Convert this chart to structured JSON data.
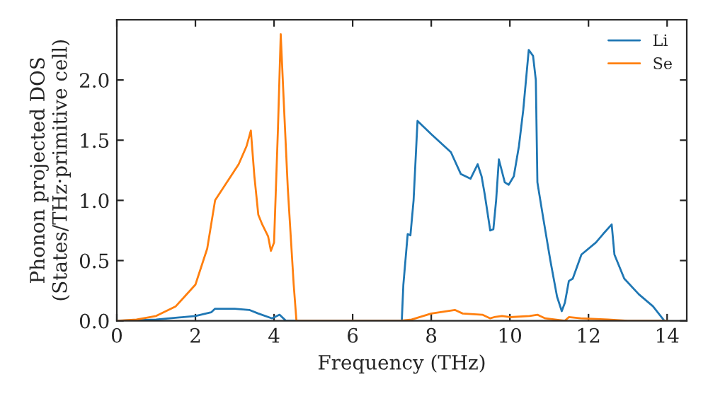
{
  "chart_data": {
    "type": "line",
    "xlabel": "Frequency (THz)",
    "ylabel": "Phonon projected DOS\n(States/THz·primitive cell)",
    "xlim": [
      0,
      14.5
    ],
    "ylim": [
      0,
      2.5
    ],
    "xticks": [
      0,
      2,
      4,
      6,
      8,
      10,
      12,
      14
    ],
    "yticks": [
      {
        "value": 0,
        "label": "0.0"
      },
      0.5,
      {
        "value": 1,
        "label": "1.0"
      },
      1.5,
      {
        "value": 2,
        "label": "2.0"
      }
    ],
    "legend": "top right",
    "grid": false,
    "series": [
      {
        "name": "Li",
        "color": "#1f77b4",
        "x": [
          0,
          1,
          2,
          2.4,
          2.5,
          3,
          3.37,
          3.6,
          3.95,
          4.14,
          4.3,
          7.25,
          7.29,
          7.4,
          7.47,
          7.55,
          7.65,
          8.0,
          8.5,
          8.75,
          9.0,
          9.18,
          9.28,
          9.36,
          9.5,
          9.58,
          9.65,
          9.72,
          9.87,
          9.97,
          10.1,
          10.23,
          10.34,
          10.48,
          10.59,
          10.66,
          10.7,
          10.85,
          11.03,
          11.2,
          11.32,
          11.4,
          11.5,
          11.6,
          11.82,
          12.19,
          12.37,
          12.59,
          12.66,
          12.91,
          13.28,
          13.64,
          13.93
        ],
        "values": [
          0,
          0.01,
          0.04,
          0.07,
          0.1,
          0.1,
          0.09,
          0.06,
          0.02,
          0.05,
          0,
          0,
          0.3,
          0.72,
          0.71,
          1.0,
          1.66,
          1.55,
          1.4,
          1.22,
          1.18,
          1.3,
          1.2,
          1.05,
          0.75,
          0.76,
          1.0,
          1.34,
          1.15,
          1.13,
          1.2,
          1.45,
          1.75,
          2.25,
          2.2,
          2.0,
          1.15,
          0.85,
          0.5,
          0.2,
          0.08,
          0.15,
          0.33,
          0.35,
          0.55,
          0.65,
          0.72,
          0.8,
          0.55,
          0.35,
          0.22,
          0.12,
          0
        ]
      },
      {
        "name": "Se",
        "color": "#ff7f0e",
        "x": [
          0,
          0.5,
          1,
          1.5,
          2,
          2.3,
          2.5,
          2.8,
          3.1,
          3.3,
          3.41,
          3.5,
          3.6,
          3.7,
          3.85,
          3.92,
          4.0,
          4.1,
          4.17,
          4.25,
          4.35,
          4.5,
          4.57,
          7.2,
          7.5,
          8.0,
          8.6,
          8.8,
          9.3,
          9.5,
          9.6,
          9.8,
          10.0,
          10.5,
          10.7,
          10.9,
          11.4,
          11.5,
          11.8,
          12.5,
          13.0,
          14.0
        ],
        "values": [
          0,
          0.01,
          0.04,
          0.12,
          0.3,
          0.6,
          1.0,
          1.15,
          1.3,
          1.45,
          1.58,
          1.2,
          0.88,
          0.8,
          0.7,
          0.58,
          0.65,
          1.6,
          2.38,
          1.8,
          1.1,
          0.3,
          0,
          0,
          0.01,
          0.06,
          0.09,
          0.06,
          0.05,
          0.02,
          0.03,
          0.04,
          0.03,
          0.04,
          0.05,
          0.02,
          0,
          0.03,
          0.02,
          0.01,
          0,
          0
        ]
      }
    ]
  }
}
